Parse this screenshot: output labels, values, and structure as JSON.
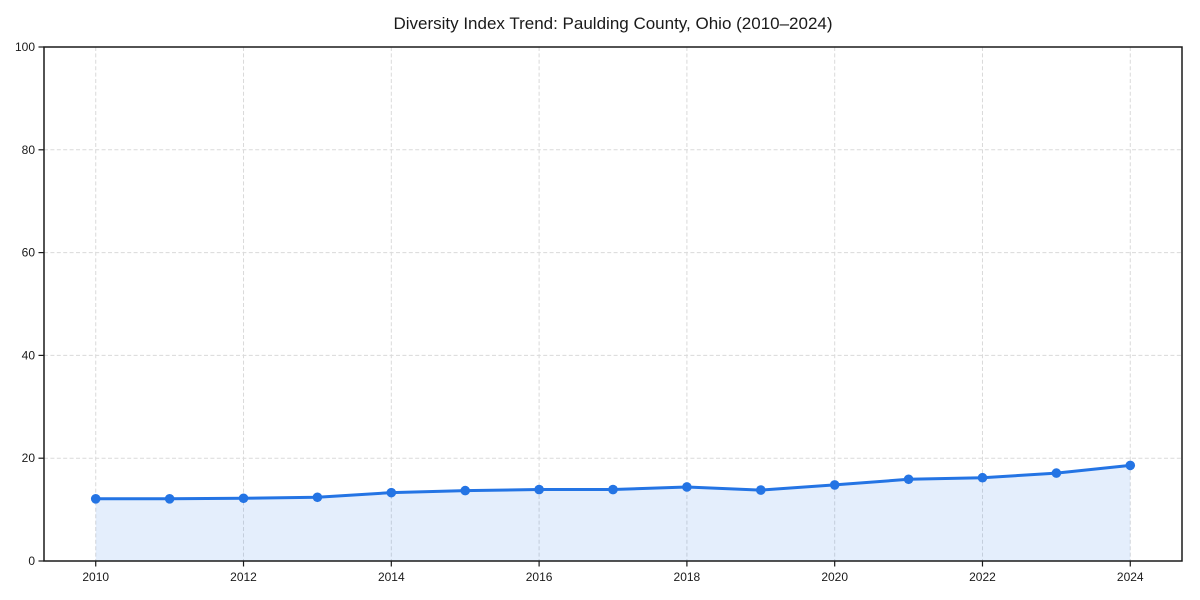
{
  "chart_data": {
    "type": "line",
    "title": "Diversity Index Trend: Paulding County, Ohio (2010–2024)",
    "series_name": "Diversity Index",
    "x": [
      2010,
      2011,
      2012,
      2013,
      2014,
      2015,
      2016,
      2017,
      2018,
      2019,
      2020,
      2021,
      2022,
      2023,
      2024
    ],
    "values": [
      12.1,
      12.1,
      12.2,
      12.4,
      13.3,
      13.7,
      13.9,
      13.9,
      14.4,
      13.8,
      14.8,
      15.9,
      16.2,
      17.1,
      18.6
    ],
    "xlabel": "",
    "ylabel": "",
    "xlim": [
      2009.3,
      2024.7
    ],
    "ylim": [
      0,
      100
    ],
    "xticks": [
      2010,
      2012,
      2014,
      2016,
      2018,
      2020,
      2022,
      2024
    ],
    "yticks": [
      0,
      20,
      40,
      60,
      80,
      100
    ],
    "grid": true,
    "grid_style": "dashed",
    "legend": "none",
    "colors": {
      "line": "#2474e4",
      "marker": "#2474e4",
      "area_fill": "rgba(36,116,228,0.12)",
      "grid": "#dadada",
      "spine": "#1a1a1a",
      "background": "#ffffff",
      "text": "#1a1a1a"
    },
    "marker": "circle",
    "marker_radius": 4.8,
    "line_width": 3
  }
}
